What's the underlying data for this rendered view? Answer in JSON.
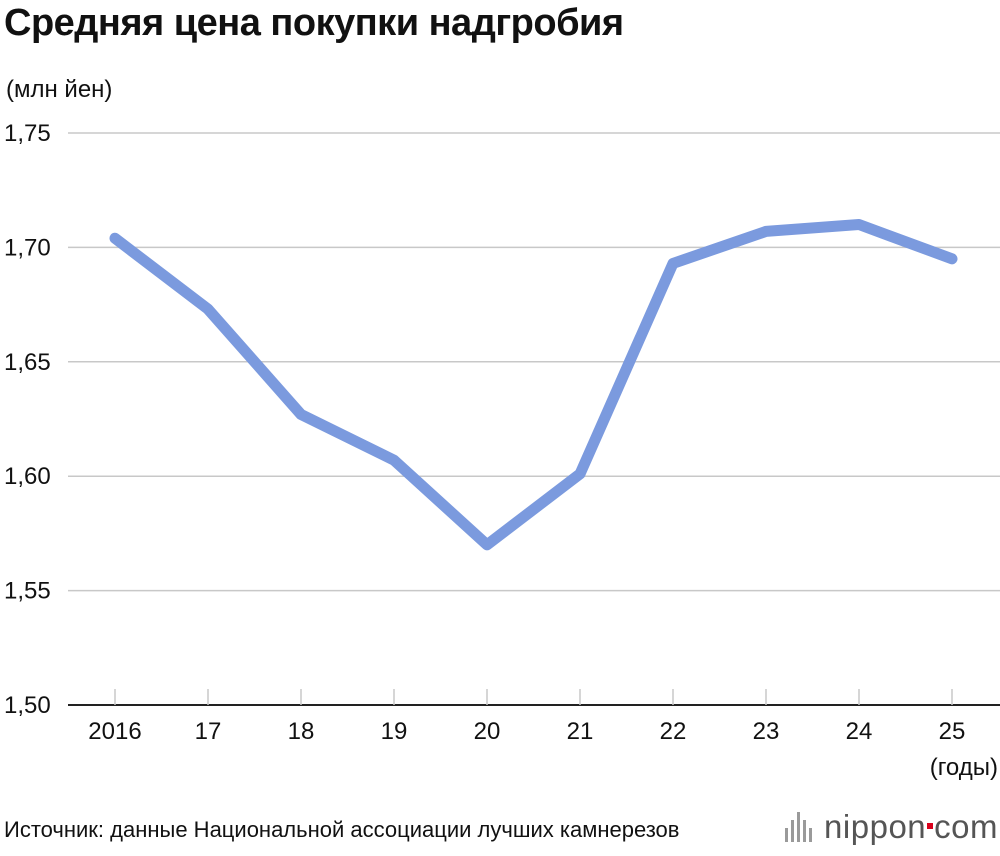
{
  "chart_data": {
    "type": "line",
    "title": "Средняя цена покупки надгробия",
    "ylabel": "(млн йен)",
    "xlabel": "(годы)",
    "categories": [
      "2016",
      "17",
      "18",
      "19",
      "20",
      "21",
      "22",
      "23",
      "24",
      "25"
    ],
    "series": [
      {
        "values": [
          1.704,
          1.673,
          1.627,
          1.607,
          1.57,
          1.601,
          1.693,
          1.707,
          1.71,
          1.695
        ]
      }
    ],
    "ylim": [
      1.5,
      1.75
    ],
    "yticks": [
      1.5,
      1.55,
      1.6,
      1.65,
      1.7,
      1.75
    ],
    "ytick_labels": [
      "1,50",
      "1,55",
      "1,60",
      "1,65",
      "1,70",
      "1,75"
    ],
    "grid": true,
    "line_color": "#7b9ade"
  },
  "source": "Источник: данные Национальной ассоциации лучших камнерезов",
  "logo": {
    "word": "nippon",
    "suffix": "com"
  }
}
